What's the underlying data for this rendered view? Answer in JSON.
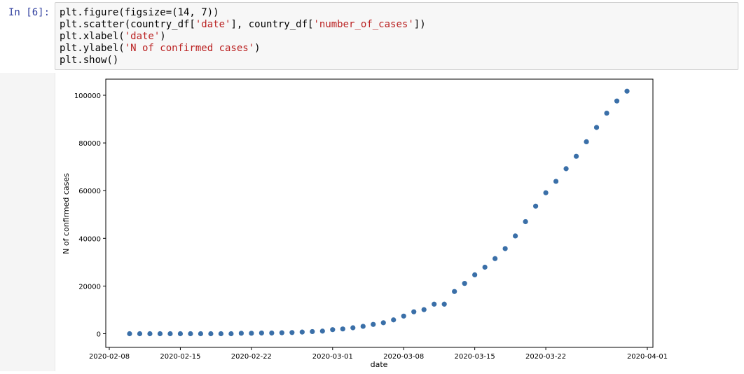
{
  "cell": {
    "prompt": "In [6]:",
    "code_lines": [
      [
        {
          "t": "plt.figure(figsize=(14, 7))",
          "c": "o"
        }
      ],
      [
        {
          "t": "plt.scatter(country_df[",
          "c": "o"
        },
        {
          "t": "'date'",
          "c": "s"
        },
        {
          "t": "], country_df[",
          "c": "o"
        },
        {
          "t": "'number_of_cases'",
          "c": "s"
        },
        {
          "t": "])",
          "c": "o"
        }
      ],
      [
        {
          "t": "plt.xlabel(",
          "c": "o"
        },
        {
          "t": "'date'",
          "c": "s"
        },
        {
          "t": ")",
          "c": "o"
        }
      ],
      [
        {
          "t": "plt.ylabel(",
          "c": "o"
        },
        {
          "t": "'N of confirmed cases'",
          "c": "s"
        },
        {
          "t": ")",
          "c": "o"
        }
      ],
      [
        {
          "t": "plt.show()",
          "c": "o"
        }
      ]
    ]
  },
  "chart_data": {
    "type": "scatter",
    "xlabel": "date",
    "ylabel": "N of confirmed cases",
    "x_ticks": [
      "2020-02-08",
      "2020-02-15",
      "2020-02-22",
      "2020-03-01",
      "2020-03-08",
      "2020-03-15",
      "2020-03-22",
      "2020-04-01"
    ],
    "y_ticks": [
      0,
      20000,
      40000,
      60000,
      80000,
      100000
    ],
    "xlim": [
      "2020-02-08",
      "2020-04-01"
    ],
    "ylim": [
      0,
      100000
    ],
    "marker_color": "#3a6fa8",
    "x": [
      "2020-02-10",
      "2020-02-11",
      "2020-02-12",
      "2020-02-13",
      "2020-02-14",
      "2020-02-15",
      "2020-02-16",
      "2020-02-17",
      "2020-02-18",
      "2020-02-19",
      "2020-02-20",
      "2020-02-21",
      "2020-02-22",
      "2020-02-23",
      "2020-02-24",
      "2020-02-25",
      "2020-02-26",
      "2020-02-27",
      "2020-02-28",
      "2020-02-29",
      "2020-03-01",
      "2020-03-02",
      "2020-03-03",
      "2020-03-04",
      "2020-03-05",
      "2020-03-06",
      "2020-03-07",
      "2020-03-08",
      "2020-03-09",
      "2020-03-10",
      "2020-03-11",
      "2020-03-12",
      "2020-03-13",
      "2020-03-14",
      "2020-03-15",
      "2020-03-16",
      "2020-03-17",
      "2020-03-18",
      "2020-03-19",
      "2020-03-20",
      "2020-03-21",
      "2020-03-22",
      "2020-03-23",
      "2020-03-24",
      "2020-03-25",
      "2020-03-26",
      "2020-03-27",
      "2020-03-28",
      "2020-03-29",
      "2020-03-30"
    ],
    "y": [
      0,
      0,
      0,
      0,
      0,
      0,
      0,
      0,
      0,
      0,
      0,
      200,
      200,
      300,
      300,
      400,
      500,
      700,
      900,
      1100,
      1700,
      2000,
      2500,
      3100,
      3900,
      4600,
      5800,
      7400,
      9200,
      10100,
      12400,
      12400,
      17700,
      21100,
      24700,
      27900,
      31500,
      35700,
      41000,
      47000,
      53500,
      59100,
      63900,
      69200,
      74400,
      80500,
      86500,
      92500,
      97600,
      101700
    ]
  }
}
